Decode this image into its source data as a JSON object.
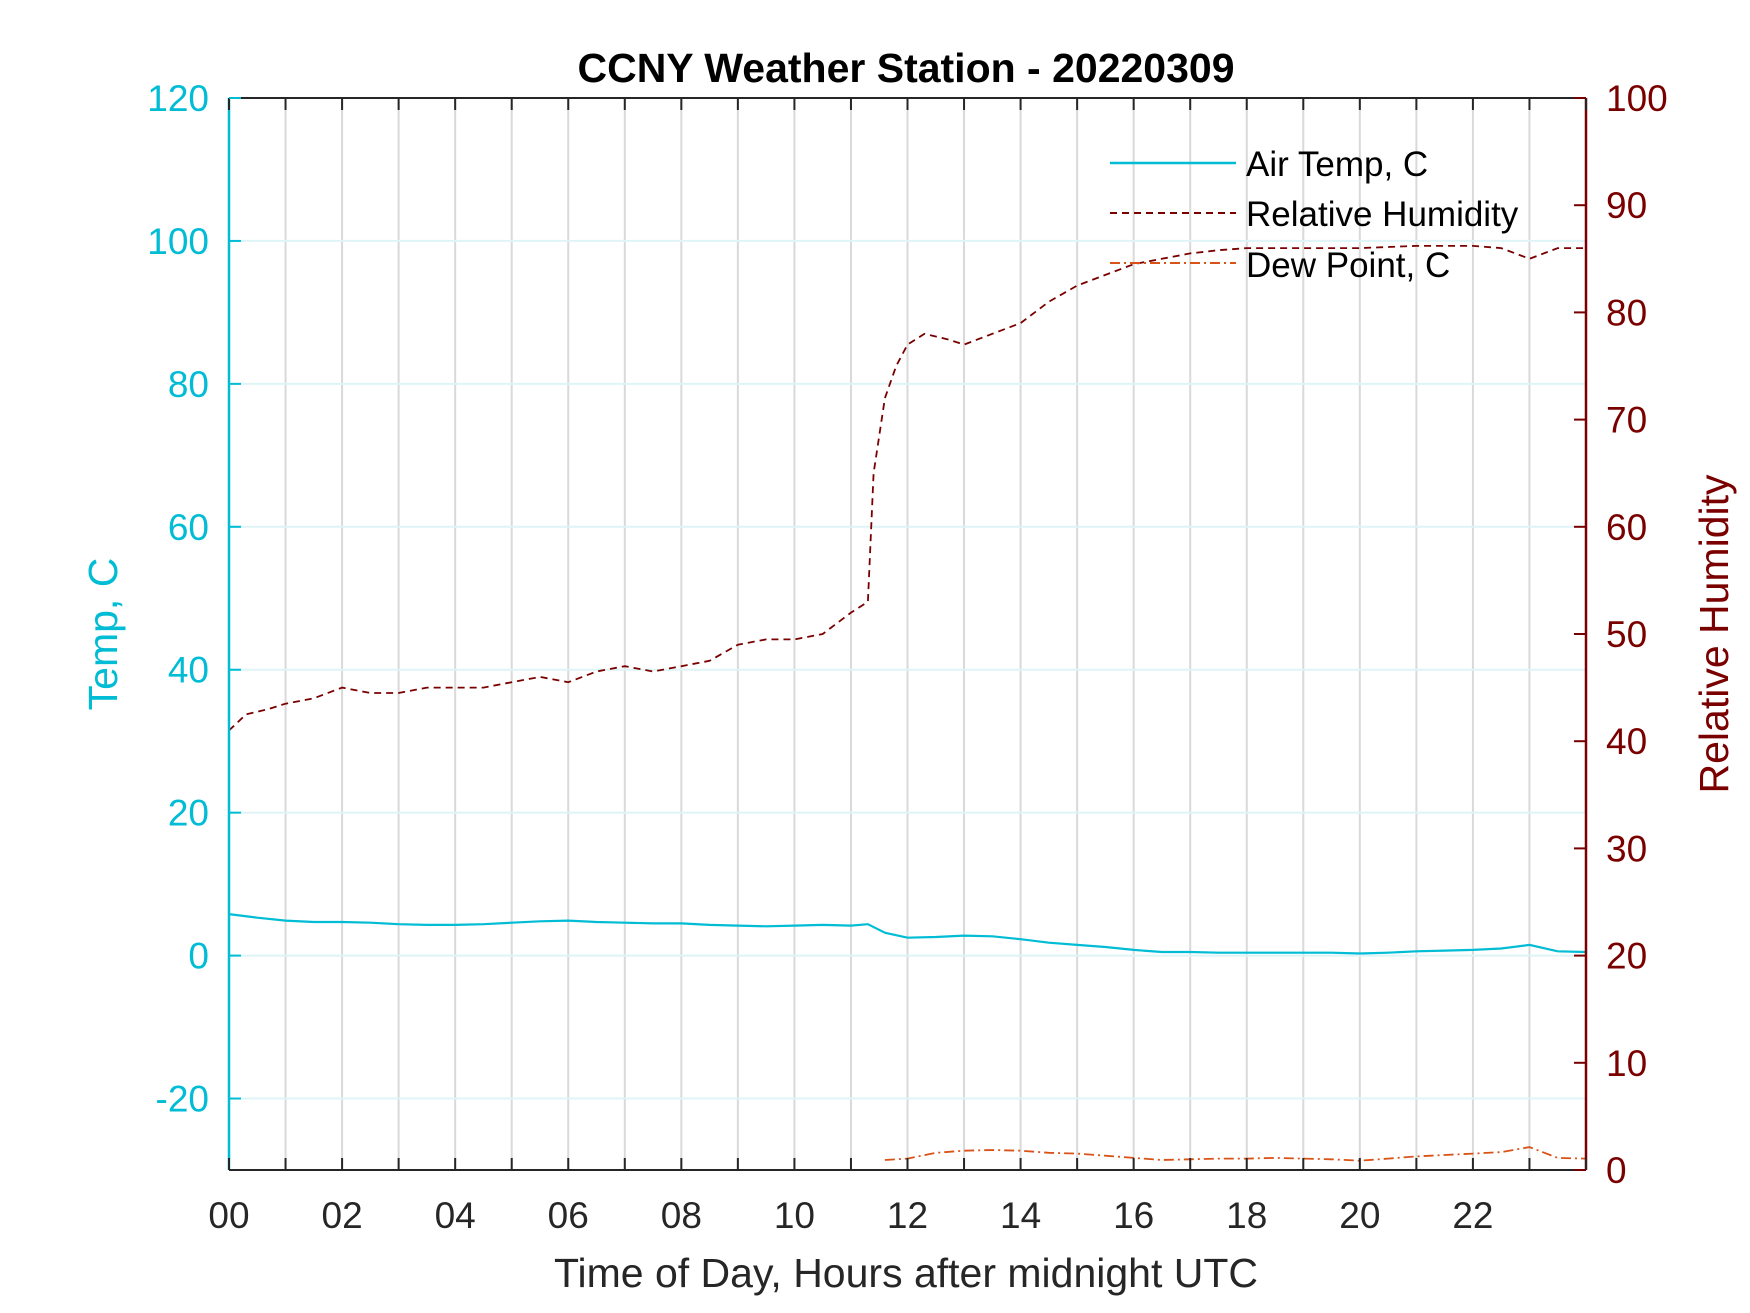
{
  "chart_data": {
    "type": "line",
    "title": "CCNY Weather Station - 20220309",
    "xlabel": "Time of Day, Hours after midnight UTC",
    "ylabel_left": "Temp, C",
    "ylabel_right": "Relative Humidity",
    "xlim": [
      0,
      24
    ],
    "ylim_left": [
      -30,
      120
    ],
    "ylim_right": [
      0,
      100
    ],
    "x_ticks": [
      "00",
      "02",
      "04",
      "06",
      "08",
      "10",
      "12",
      "14",
      "16",
      "18",
      "20",
      "22"
    ],
    "y_left_ticks": [
      "-20",
      "0",
      "20",
      "40",
      "60",
      "80",
      "100",
      "120"
    ],
    "y_right_ticks": [
      "0",
      "10",
      "20",
      "30",
      "40",
      "50",
      "60",
      "70",
      "80",
      "90",
      "100"
    ],
    "grid": true,
    "legend_position": "top-right",
    "series": [
      {
        "name": "Air Temp, C",
        "axis": "left",
        "color": "#00bcd4",
        "style": "solid",
        "x": [
          0,
          0.5,
          1,
          1.5,
          2,
          2.5,
          3,
          3.5,
          4,
          4.5,
          5,
          5.5,
          6,
          6.5,
          7,
          7.5,
          8,
          8.5,
          9,
          9.5,
          10,
          10.5,
          11,
          11.3,
          11.6,
          12,
          12.5,
          13,
          13.5,
          14,
          14.5,
          15,
          15.5,
          16,
          16.5,
          17,
          17.5,
          18,
          18.5,
          19,
          19.5,
          20,
          20.5,
          21,
          21.5,
          22,
          22.5,
          23,
          23.5,
          24
        ],
        "values": [
          5.8,
          5.3,
          4.9,
          4.7,
          4.7,
          4.6,
          4.4,
          4.3,
          4.3,
          4.4,
          4.6,
          4.8,
          4.9,
          4.7,
          4.6,
          4.5,
          4.5,
          4.3,
          4.2,
          4.1,
          4.2,
          4.3,
          4.2,
          4.4,
          3.2,
          2.5,
          2.6,
          2.8,
          2.7,
          2.3,
          1.8,
          1.5,
          1.2,
          0.8,
          0.5,
          0.5,
          0.4,
          0.4,
          0.4,
          0.4,
          0.4,
          0.3,
          0.4,
          0.6,
          0.7,
          0.8,
          1.0,
          1.5,
          0.6,
          0.5
        ]
      },
      {
        "name": "Relative Humidity",
        "axis": "right",
        "color": "#7a0000",
        "style": "dashed",
        "x": [
          0,
          0.3,
          0.7,
          1,
          1.5,
          2,
          2.5,
          3,
          3.5,
          4,
          4.5,
          5,
          5.5,
          6,
          6.5,
          7,
          7.5,
          8,
          8.5,
          9,
          9.5,
          10,
          10.5,
          11,
          11.3,
          11.4,
          11.6,
          11.8,
          12,
          12.3,
          12.7,
          13,
          13.5,
          14,
          14.5,
          15,
          15.5,
          16,
          16.5,
          17,
          17.5,
          18,
          19,
          20,
          21,
          22,
          22.5,
          23,
          23.5,
          24
        ],
        "values": [
          41,
          42.5,
          43,
          43.5,
          44,
          45,
          44.5,
          44.5,
          45,
          45,
          45,
          45.5,
          46,
          45.5,
          46.5,
          47,
          46.5,
          47,
          47.5,
          49,
          49.5,
          49.5,
          50,
          52,
          53,
          65,
          72,
          75,
          77,
          78,
          77.5,
          77,
          78,
          79,
          81,
          82.5,
          83.5,
          84.5,
          85,
          85.5,
          85.8,
          86,
          86,
          86,
          86.2,
          86.2,
          86,
          85,
          86,
          86
        ]
      },
      {
        "name": "Dew Point, C",
        "axis": "left",
        "color": "#d95319",
        "style": "dashdot",
        "x": [
          11.6,
          12,
          12.5,
          13,
          13.5,
          14,
          14.5,
          15,
          15.5,
          16,
          16.5,
          17,
          17.5,
          18,
          18.5,
          19,
          19.5,
          20,
          20.5,
          21,
          21.5,
          22,
          22.5,
          23,
          23.5,
          24
        ],
        "values": [
          -28.6,
          -28.4,
          -27.6,
          -27.3,
          -27.2,
          -27.3,
          -27.6,
          -27.7,
          -28.0,
          -28.3,
          -28.6,
          -28.5,
          -28.4,
          -28.4,
          -28.3,
          -28.4,
          -28.5,
          -28.7,
          -28.4,
          -28.1,
          -27.9,
          -27.7,
          -27.5,
          -26.8,
          -28.3,
          -28.4
        ]
      }
    ]
  }
}
